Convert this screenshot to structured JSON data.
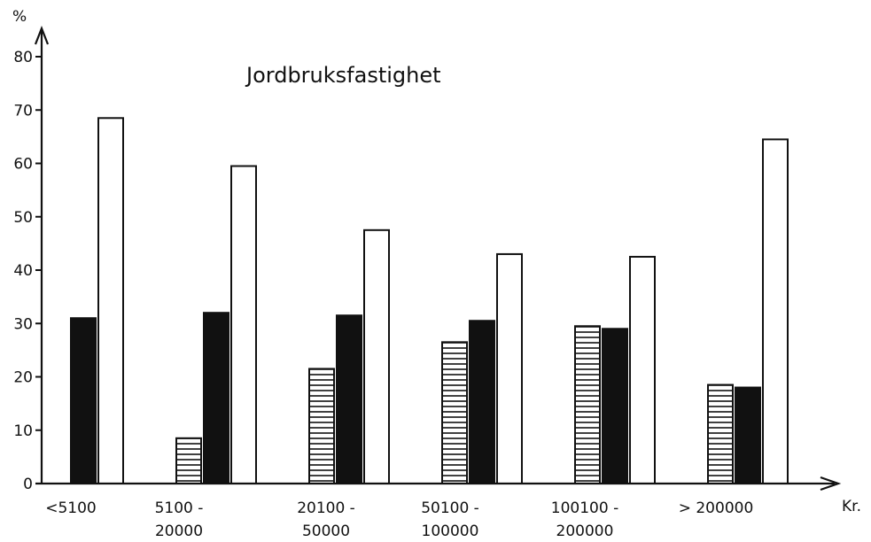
{
  "chart_data": {
    "type": "bar",
    "title": "Jordbruksfastighet",
    "ylabel": "%",
    "xlabel": "Kr.",
    "ylim": [
      0,
      80
    ],
    "yticks": [
      0,
      10,
      20,
      30,
      40,
      50,
      60,
      70,
      80
    ],
    "categories": [
      [
        "<5100"
      ],
      [
        "5100 -",
        "20000"
      ],
      [
        "20100 -",
        "50000"
      ],
      [
        "50100 -",
        "100000"
      ],
      [
        "100100 -",
        "200000"
      ],
      [
        "> 200000"
      ]
    ],
    "series": [
      {
        "pattern": "horizontal-hatch",
        "values": [
          0,
          8.5,
          21.5,
          26.5,
          29.5,
          18.5
        ]
      },
      {
        "pattern": "solid-black",
        "values": [
          31,
          32,
          31.5,
          30.5,
          29,
          18
        ]
      },
      {
        "pattern": "white",
        "values": [
          68.5,
          59.5,
          47.5,
          43,
          42.5,
          64.5
        ]
      }
    ],
    "grid": false,
    "legend": "none"
  }
}
